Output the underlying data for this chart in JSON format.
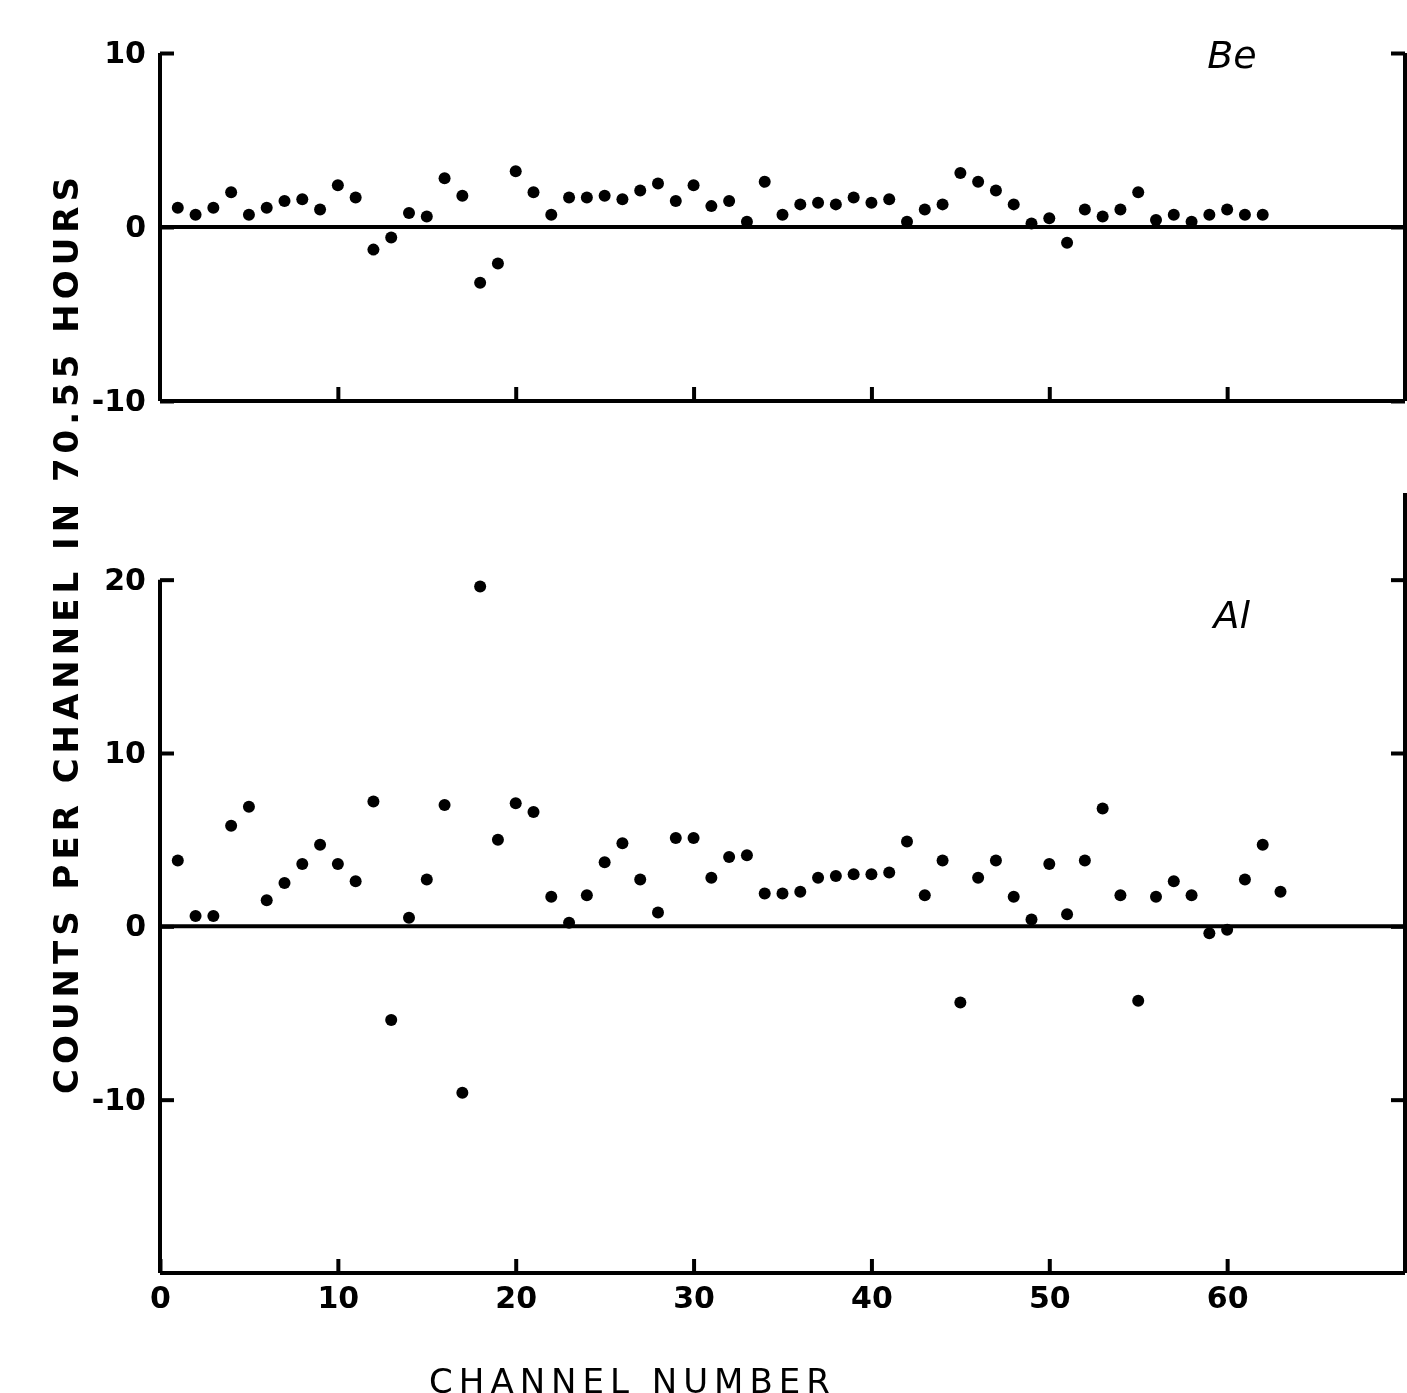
{
  "chart_data": [
    {
      "type": "scatter",
      "ylabel": "COUNTS PER CHANNEL IN 70.55 HOURS",
      "annotations": [
        "Be"
      ],
      "xlim": [
        0,
        70
      ],
      "xticks": [
        {
          "value": 10,
          "label": null
        },
        {
          "value": 20,
          "label": null
        },
        {
          "value": 30,
          "label": null
        },
        {
          "value": 40,
          "label": null
        },
        {
          "value": 50,
          "label": null
        },
        {
          "value": 60,
          "label": null
        }
      ],
      "ylim": [
        -10,
        10
      ],
      "yticks": [
        10,
        0,
        -10
      ],
      "tick_labels": "y",
      "marker": "circle",
      "ref_lines": [
        {
          "axis": "y",
          "value": 0
        }
      ],
      "series": [
        {
          "color": "#000000",
          "x": [
            1,
            2,
            3,
            4,
            5,
            6,
            7,
            8,
            9,
            10,
            11,
            12,
            13,
            14,
            15,
            16,
            17,
            18,
            19,
            20,
            21,
            22,
            23,
            24,
            25,
            26,
            27,
            28,
            29,
            30,
            31,
            32,
            33,
            34,
            35,
            36,
            37,
            38,
            39,
            40,
            41,
            42,
            43,
            44,
            45,
            46,
            47,
            48,
            49,
            50,
            51,
            52,
            53,
            54,
            55,
            56,
            57,
            58,
            59,
            60,
            61,
            62
          ],
          "values": [
            1.1,
            0.7,
            1.1,
            2.0,
            0.7,
            1.1,
            1.5,
            1.6,
            1.0,
            2.4,
            1.7,
            -1.3,
            -0.6,
            0.8,
            0.6,
            2.8,
            1.8,
            -3.2,
            -2.1,
            3.2,
            2.0,
            0.7,
            1.7,
            1.7,
            1.8,
            1.6,
            2.1,
            2.5,
            1.5,
            2.4,
            1.2,
            1.5,
            0.3,
            2.6,
            0.7,
            1.3,
            1.4,
            1.3,
            1.7,
            1.4,
            1.6,
            0.3,
            1.0,
            1.3,
            3.1,
            2.6,
            2.1,
            1.3,
            0.2,
            0.5,
            -0.9,
            1.0,
            0.6,
            1.0,
            2.0,
            0.4,
            0.7,
            0.3,
            0.7,
            1.0,
            0.7,
            0.7
          ]
        }
      ]
    },
    {
      "type": "scatter",
      "xlabel": "CHANNEL NUMBER",
      "annotations": [
        "Al"
      ],
      "xlim": [
        0,
        70
      ],
      "xticks": [
        0,
        10,
        20,
        30,
        40,
        50,
        60
      ],
      "ylim": [
        -20,
        25
      ],
      "yticks": [
        20,
        10,
        0,
        -10
      ],
      "marker": "circle",
      "ref_lines": [
        {
          "axis": "y",
          "value": 0
        }
      ],
      "series": [
        {
          "color": "#000000",
          "x": [
            1,
            2,
            3,
            4,
            5,
            6,
            7,
            8,
            9,
            10,
            11,
            12,
            13,
            14,
            15,
            16,
            17,
            18,
            19,
            20,
            21,
            22,
            23,
            24,
            25,
            26,
            27,
            28,
            29,
            30,
            31,
            32,
            33,
            34,
            35,
            36,
            37,
            38,
            39,
            40,
            41,
            42,
            43,
            44,
            45,
            46,
            47,
            48,
            49,
            50,
            51,
            52,
            53,
            54,
            55,
            56,
            57,
            58,
            59,
            60,
            61,
            62,
            63
          ],
          "values": [
            3.8,
            0.6,
            0.6,
            5.8,
            6.9,
            1.5,
            2.5,
            3.6,
            4.7,
            3.6,
            2.6,
            7.2,
            -5.4,
            0.5,
            2.7,
            7.0,
            -9.6,
            19.6,
            5.0,
            7.1,
            6.6,
            1.7,
            0.2,
            1.8,
            3.7,
            4.8,
            2.7,
            0.8,
            5.1,
            5.1,
            2.8,
            4.0,
            4.1,
            1.9,
            1.9,
            2.0,
            2.8,
            2.9,
            3.0,
            3.0,
            3.1,
            4.9,
            1.8,
            3.8,
            -4.4,
            2.8,
            3.8,
            1.7,
            0.4,
            3.6,
            0.7,
            3.8,
            6.8,
            1.8,
            -4.3,
            1.7,
            2.6,
            1.8,
            -0.4,
            -0.2,
            2.7,
            4.7,
            2.0
          ]
        }
      ]
    }
  ]
}
